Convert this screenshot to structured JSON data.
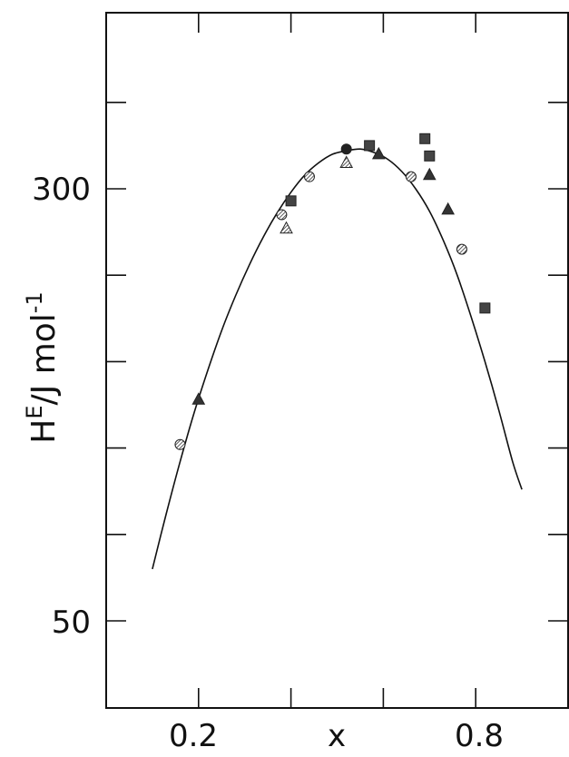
{
  "chart_data": {
    "type": "scatter",
    "title": "",
    "xlabel": "x",
    "ylabel": "H^E/J mol^-1",
    "ylabel_parts": {
      "main": "H",
      "sup1": "E",
      "unit": "/J mol",
      "sup2": "-1"
    },
    "xlim": [
      0.0,
      1.0
    ],
    "ylim": [
      0,
      350
    ],
    "grid": false,
    "x_ticks": [
      0.2,
      0.5,
      0.8
    ],
    "x_tick_labels": [
      "0.2",
      "x",
      "0.8"
    ],
    "x_tick_marks": [
      0.2,
      0.4,
      0.6,
      0.8
    ],
    "y_ticks_labeled": [
      {
        "value": 300,
        "label": "300"
      },
      {
        "value": 50,
        "label": "50"
      }
    ],
    "y_tick_marks": [
      350,
      300,
      250,
      200,
      150,
      100,
      50
    ],
    "series": [
      {
        "marker": "circle-hatched",
        "points": [
          [
            0.16,
            152
          ],
          [
            0.38,
            285
          ],
          [
            0.44,
            307
          ],
          [
            0.66,
            307
          ],
          [
            0.77,
            265
          ]
        ]
      },
      {
        "marker": "circle-filled",
        "points": [
          [
            0.52,
            323
          ]
        ]
      },
      {
        "marker": "square-filled",
        "points": [
          [
            0.4,
            293
          ],
          [
            0.57,
            325
          ],
          [
            0.69,
            329
          ],
          [
            0.7,
            319
          ],
          [
            0.82,
            231
          ]
        ]
      },
      {
        "marker": "triangle-filled",
        "points": [
          [
            0.2,
            178
          ],
          [
            0.59,
            320
          ],
          [
            0.7,
            308
          ],
          [
            0.74,
            288
          ]
        ]
      },
      {
        "marker": "triangle-hatched",
        "points": [
          [
            0.39,
            277
          ],
          [
            0.52,
            315
          ]
        ]
      }
    ],
    "curve": {
      "x": [
        0.1,
        0.13,
        0.16,
        0.19,
        0.22,
        0.25,
        0.28,
        0.31,
        0.34,
        0.37,
        0.4,
        0.43,
        0.46,
        0.49,
        0.52,
        0.55,
        0.58,
        0.61,
        0.64,
        0.67,
        0.7,
        0.73,
        0.76,
        0.79,
        0.82,
        0.85,
        0.88,
        0.9
      ],
      "y": [
        80,
        112,
        142,
        170,
        195,
        218,
        238,
        256,
        272,
        286,
        298,
        308,
        315,
        320,
        322,
        323,
        321,
        317,
        310,
        300,
        287,
        270,
        250,
        226,
        200,
        172,
        142,
        126
      ]
    }
  }
}
